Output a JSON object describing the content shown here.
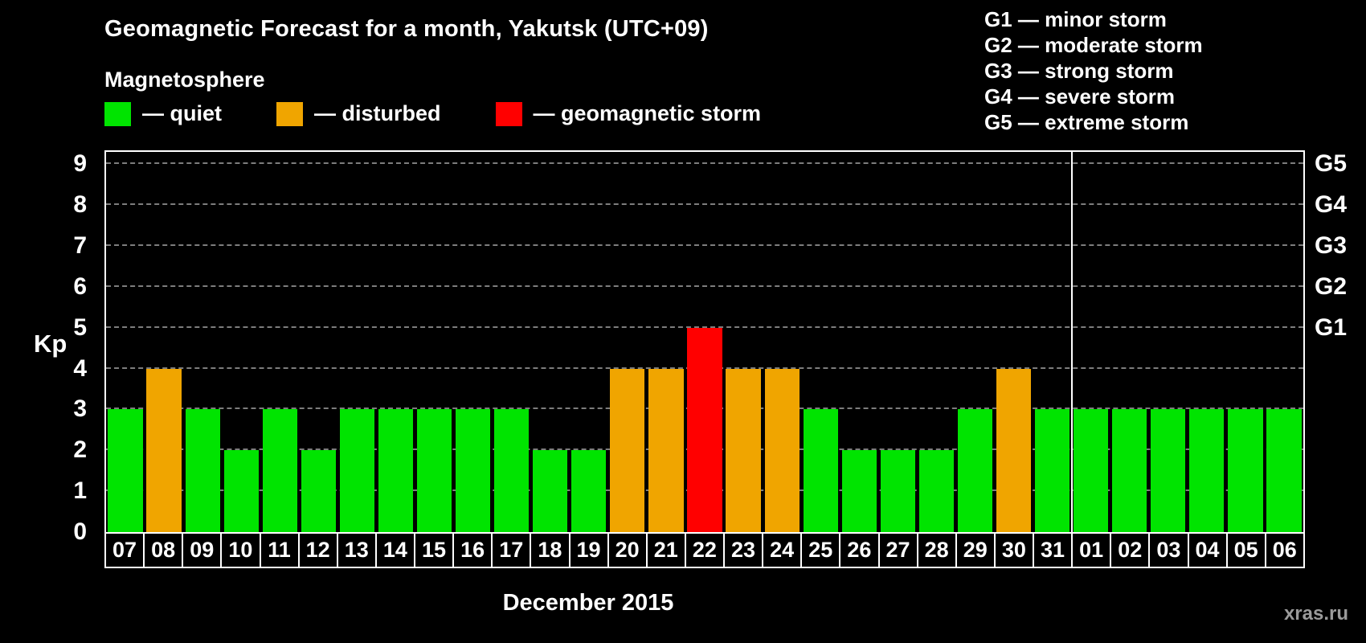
{
  "header": {
    "title": "Geomagnetic Forecast for a month, Yakutsk (UTC+09)",
    "subtitle": "Magnetosphere"
  },
  "legend": {
    "items": [
      {
        "status": "quiet",
        "label": "— quiet",
        "color": "#00e400"
      },
      {
        "status": "disturbed",
        "label": "— disturbed",
        "color": "#f0a500"
      },
      {
        "status": "storm",
        "label": "— geomagnetic storm",
        "color": "#ff0000"
      }
    ]
  },
  "storm_scale_legend": [
    "G1 — minor storm",
    "G2 — moderate storm",
    "G3 — strong storm",
    "G4 — severe storm",
    "G5 — extreme storm"
  ],
  "watermark": "xras.ru",
  "chart_data": {
    "type": "bar",
    "title": "Geomagnetic Forecast for a month, Yakutsk (UTC+09)",
    "xlabel": "December 2015",
    "ylabel": "Kp",
    "ylim": [
      0,
      9.3
    ],
    "yticks": [
      0,
      1,
      2,
      3,
      4,
      5,
      6,
      7,
      8,
      9
    ],
    "right_axis": [
      {
        "label": "G1",
        "value": 5
      },
      {
        "label": "G2",
        "value": 6
      },
      {
        "label": "G3",
        "value": 7
      },
      {
        "label": "G4",
        "value": 8
      },
      {
        "label": "G5",
        "value": 9
      }
    ],
    "categories": [
      "07",
      "08",
      "09",
      "10",
      "11",
      "12",
      "13",
      "14",
      "15",
      "16",
      "17",
      "18",
      "19",
      "20",
      "21",
      "22",
      "23",
      "24",
      "25",
      "26",
      "27",
      "28",
      "29",
      "30",
      "31",
      "01",
      "02",
      "03",
      "04",
      "05",
      "06"
    ],
    "values": [
      3,
      4,
      3,
      2,
      3,
      2,
      3,
      3,
      3,
      3,
      3,
      2,
      2,
      4,
      4,
      5,
      4,
      4,
      3,
      2,
      2,
      2,
      3,
      4,
      3,
      3,
      3,
      3,
      3,
      3,
      3
    ],
    "statuses": [
      "quiet",
      "disturbed",
      "quiet",
      "quiet",
      "quiet",
      "quiet",
      "quiet",
      "quiet",
      "quiet",
      "quiet",
      "quiet",
      "quiet",
      "quiet",
      "disturbed",
      "disturbed",
      "storm",
      "disturbed",
      "disturbed",
      "quiet",
      "quiet",
      "quiet",
      "quiet",
      "quiet",
      "disturbed",
      "quiet",
      "quiet",
      "quiet",
      "quiet",
      "quiet",
      "quiet",
      "quiet"
    ],
    "status_colors": {
      "quiet": "#00e400",
      "disturbed": "#f0a500",
      "storm": "#ff0000"
    },
    "month_divider_after_index": 24,
    "grid": "dashed horizontal gridlines at Kp 1-9",
    "legend_position": "top"
  }
}
